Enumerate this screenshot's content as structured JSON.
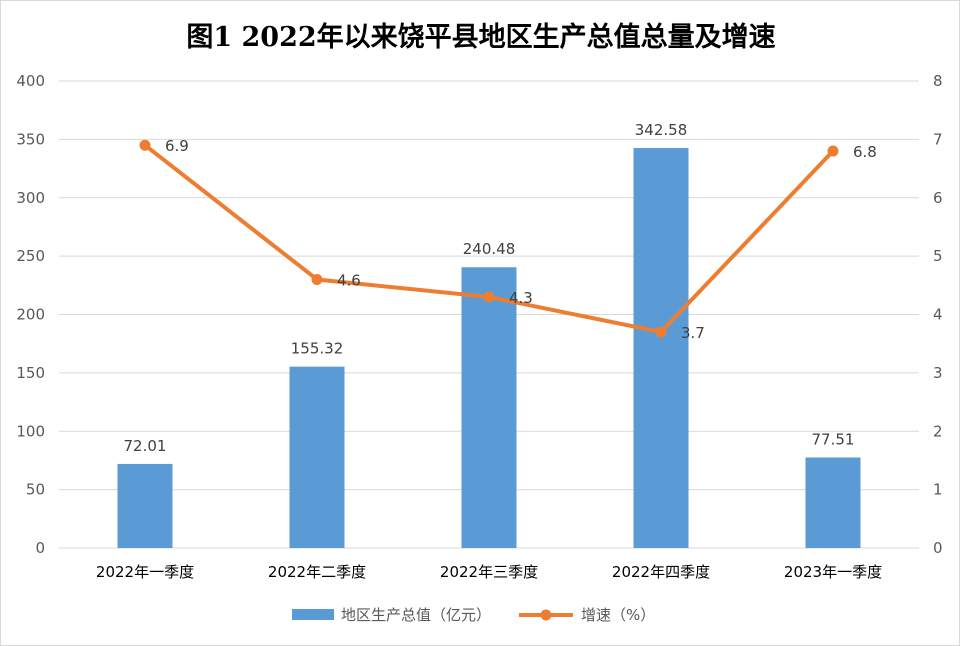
{
  "chart_data": {
    "type": "bar",
    "title": "图1  2022年以来饶平县地区生产总值总量及增速",
    "categories": [
      "2022年一季度",
      "2022年二季度",
      "2022年三季度",
      "2022年四季度",
      "2023年一季度"
    ],
    "series": [
      {
        "name": "地区生产总值（亿元）",
        "type": "bar",
        "axis": "left",
        "values": [
          72.01,
          155.32,
          240.48,
          342.58,
          77.51
        ],
        "labels": [
          "72.01",
          "155.32",
          "240.48",
          "342.58",
          "77.51"
        ],
        "color": "#5b9bd5"
      },
      {
        "name": "增速（%）",
        "type": "line",
        "axis": "right",
        "values": [
          6.9,
          4.6,
          4.3,
          3.7,
          6.8
        ],
        "labels": [
          "6.9",
          "4.6",
          "4.3",
          "3.7",
          "6.8"
        ],
        "color": "#ed7d31"
      }
    ],
    "y_left": {
      "min": 0,
      "max": 400,
      "step": 50,
      "ticks": [
        "0",
        "50",
        "100",
        "150",
        "200",
        "250",
        "300",
        "350",
        "400"
      ]
    },
    "y_right": {
      "min": 0,
      "max": 8,
      "step": 1,
      "ticks": [
        "0",
        "1",
        "2",
        "3",
        "4",
        "5",
        "6",
        "7",
        "8"
      ]
    },
    "grid": true,
    "legend_position": "bottom"
  },
  "colors": {
    "bar": "#5b9bd5",
    "line": "#ed7d31",
    "grid": "#d9d9d9",
    "tick_text": "#595959"
  }
}
